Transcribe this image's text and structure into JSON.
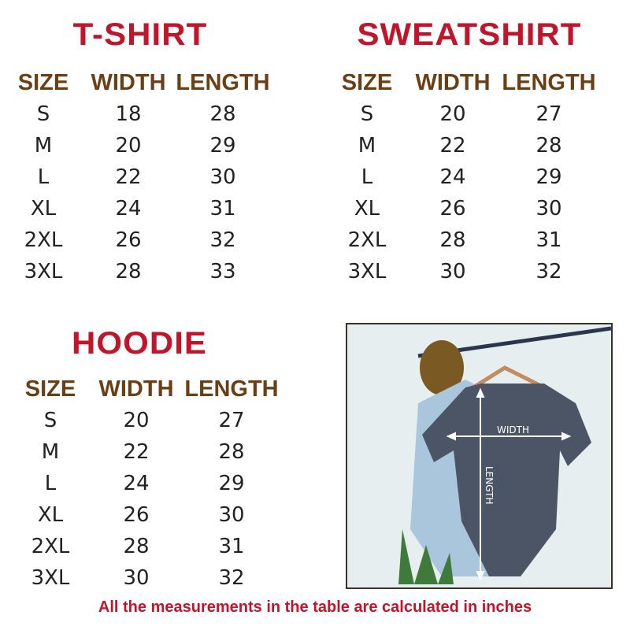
{
  "tables": [
    {
      "title": "T-SHIRT",
      "headers": [
        "SIZE",
        "WIDTH",
        "LENGTH"
      ],
      "rows": [
        [
          "S",
          "18",
          "28"
        ],
        [
          "M",
          "20",
          "29"
        ],
        [
          "L",
          "22",
          "30"
        ],
        [
          "XL",
          "24",
          "31"
        ],
        [
          "2XL",
          "26",
          "32"
        ],
        [
          "3XL",
          "28",
          "33"
        ]
      ]
    },
    {
      "title": "SWEATSHIRT",
      "headers": [
        "SIZE",
        "WIDTH",
        "LENGTH"
      ],
      "rows": [
        [
          "S",
          "20",
          "27"
        ],
        [
          "M",
          "22",
          "28"
        ],
        [
          "L",
          "24",
          "29"
        ],
        [
          "XL",
          "26",
          "30"
        ],
        [
          "2XL",
          "28",
          "31"
        ],
        [
          "3XL",
          "30",
          "32"
        ]
      ]
    },
    {
      "title": "HOODIE",
      "headers": [
        "SIZE",
        "WIDTH",
        "LENGTH"
      ],
      "rows": [
        [
          "S",
          "20",
          "27"
        ],
        [
          "M",
          "22",
          "28"
        ],
        [
          "L",
          "24",
          "29"
        ],
        [
          "XL",
          "26",
          "30"
        ],
        [
          "2XL",
          "28",
          "31"
        ],
        [
          "3XL",
          "30",
          "32"
        ]
      ]
    }
  ],
  "photo": {
    "width_label": "WIDTH",
    "length_label": "LENGTH"
  },
  "footer": "All the measurements in the table are calculated in inches",
  "colors": {
    "title": "#c0152a",
    "header": "#6b3f14",
    "text": "#222222"
  }
}
